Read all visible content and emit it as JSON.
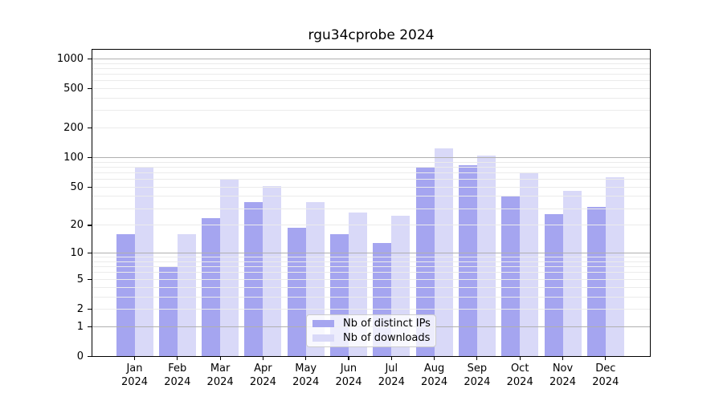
{
  "figure": {
    "title": "rgu34cprobe 2024"
  },
  "chart_data": {
    "type": "bar",
    "title": "rgu34cprobe 2024",
    "categories": [
      "Jan",
      "Feb",
      "Mar",
      "Apr",
      "May",
      "Jun",
      "Jul",
      "Aug",
      "Sep",
      "Oct",
      "Nov",
      "Dec"
    ],
    "x_tick_year": "2024",
    "series": [
      {
        "name": "Nb of distinct IPs",
        "color": "#a5a5f0",
        "values": [
          16,
          7,
          24,
          35,
          19,
          16,
          13,
          81,
          83,
          40,
          26,
          31
        ]
      },
      {
        "name": "Nb of downloads",
        "color": "#d9d9f8",
        "values": [
          80,
          16,
          60,
          51,
          35,
          27,
          25,
          125,
          105,
          70,
          46,
          63
        ]
      }
    ],
    "y_scale": "log1p",
    "y_ticks": [
      0,
      1,
      2,
      5,
      10,
      20,
      50,
      100,
      200,
      500,
      1000
    ],
    "ylim": [
      0,
      1260
    ],
    "grid": {
      "major_decades": [
        1,
        10,
        100,
        1000
      ],
      "minor_steps": [
        2,
        3,
        4,
        5,
        6,
        7,
        8,
        9
      ],
      "minor_decades": [
        1,
        10,
        100
      ]
    },
    "legend": {
      "entries": [
        "Nb of distinct IPs",
        "Nb of downloads"
      ],
      "location": "lower center"
    }
  },
  "colors": {
    "bar_ips": "#a5a5f0",
    "bar_downloads": "#d9d9f8",
    "grid_major": "#b0b0b0",
    "grid_minor": "#ebebeb",
    "spine": "#000000",
    "legend_border": "#cccccc",
    "text": "#000000"
  }
}
